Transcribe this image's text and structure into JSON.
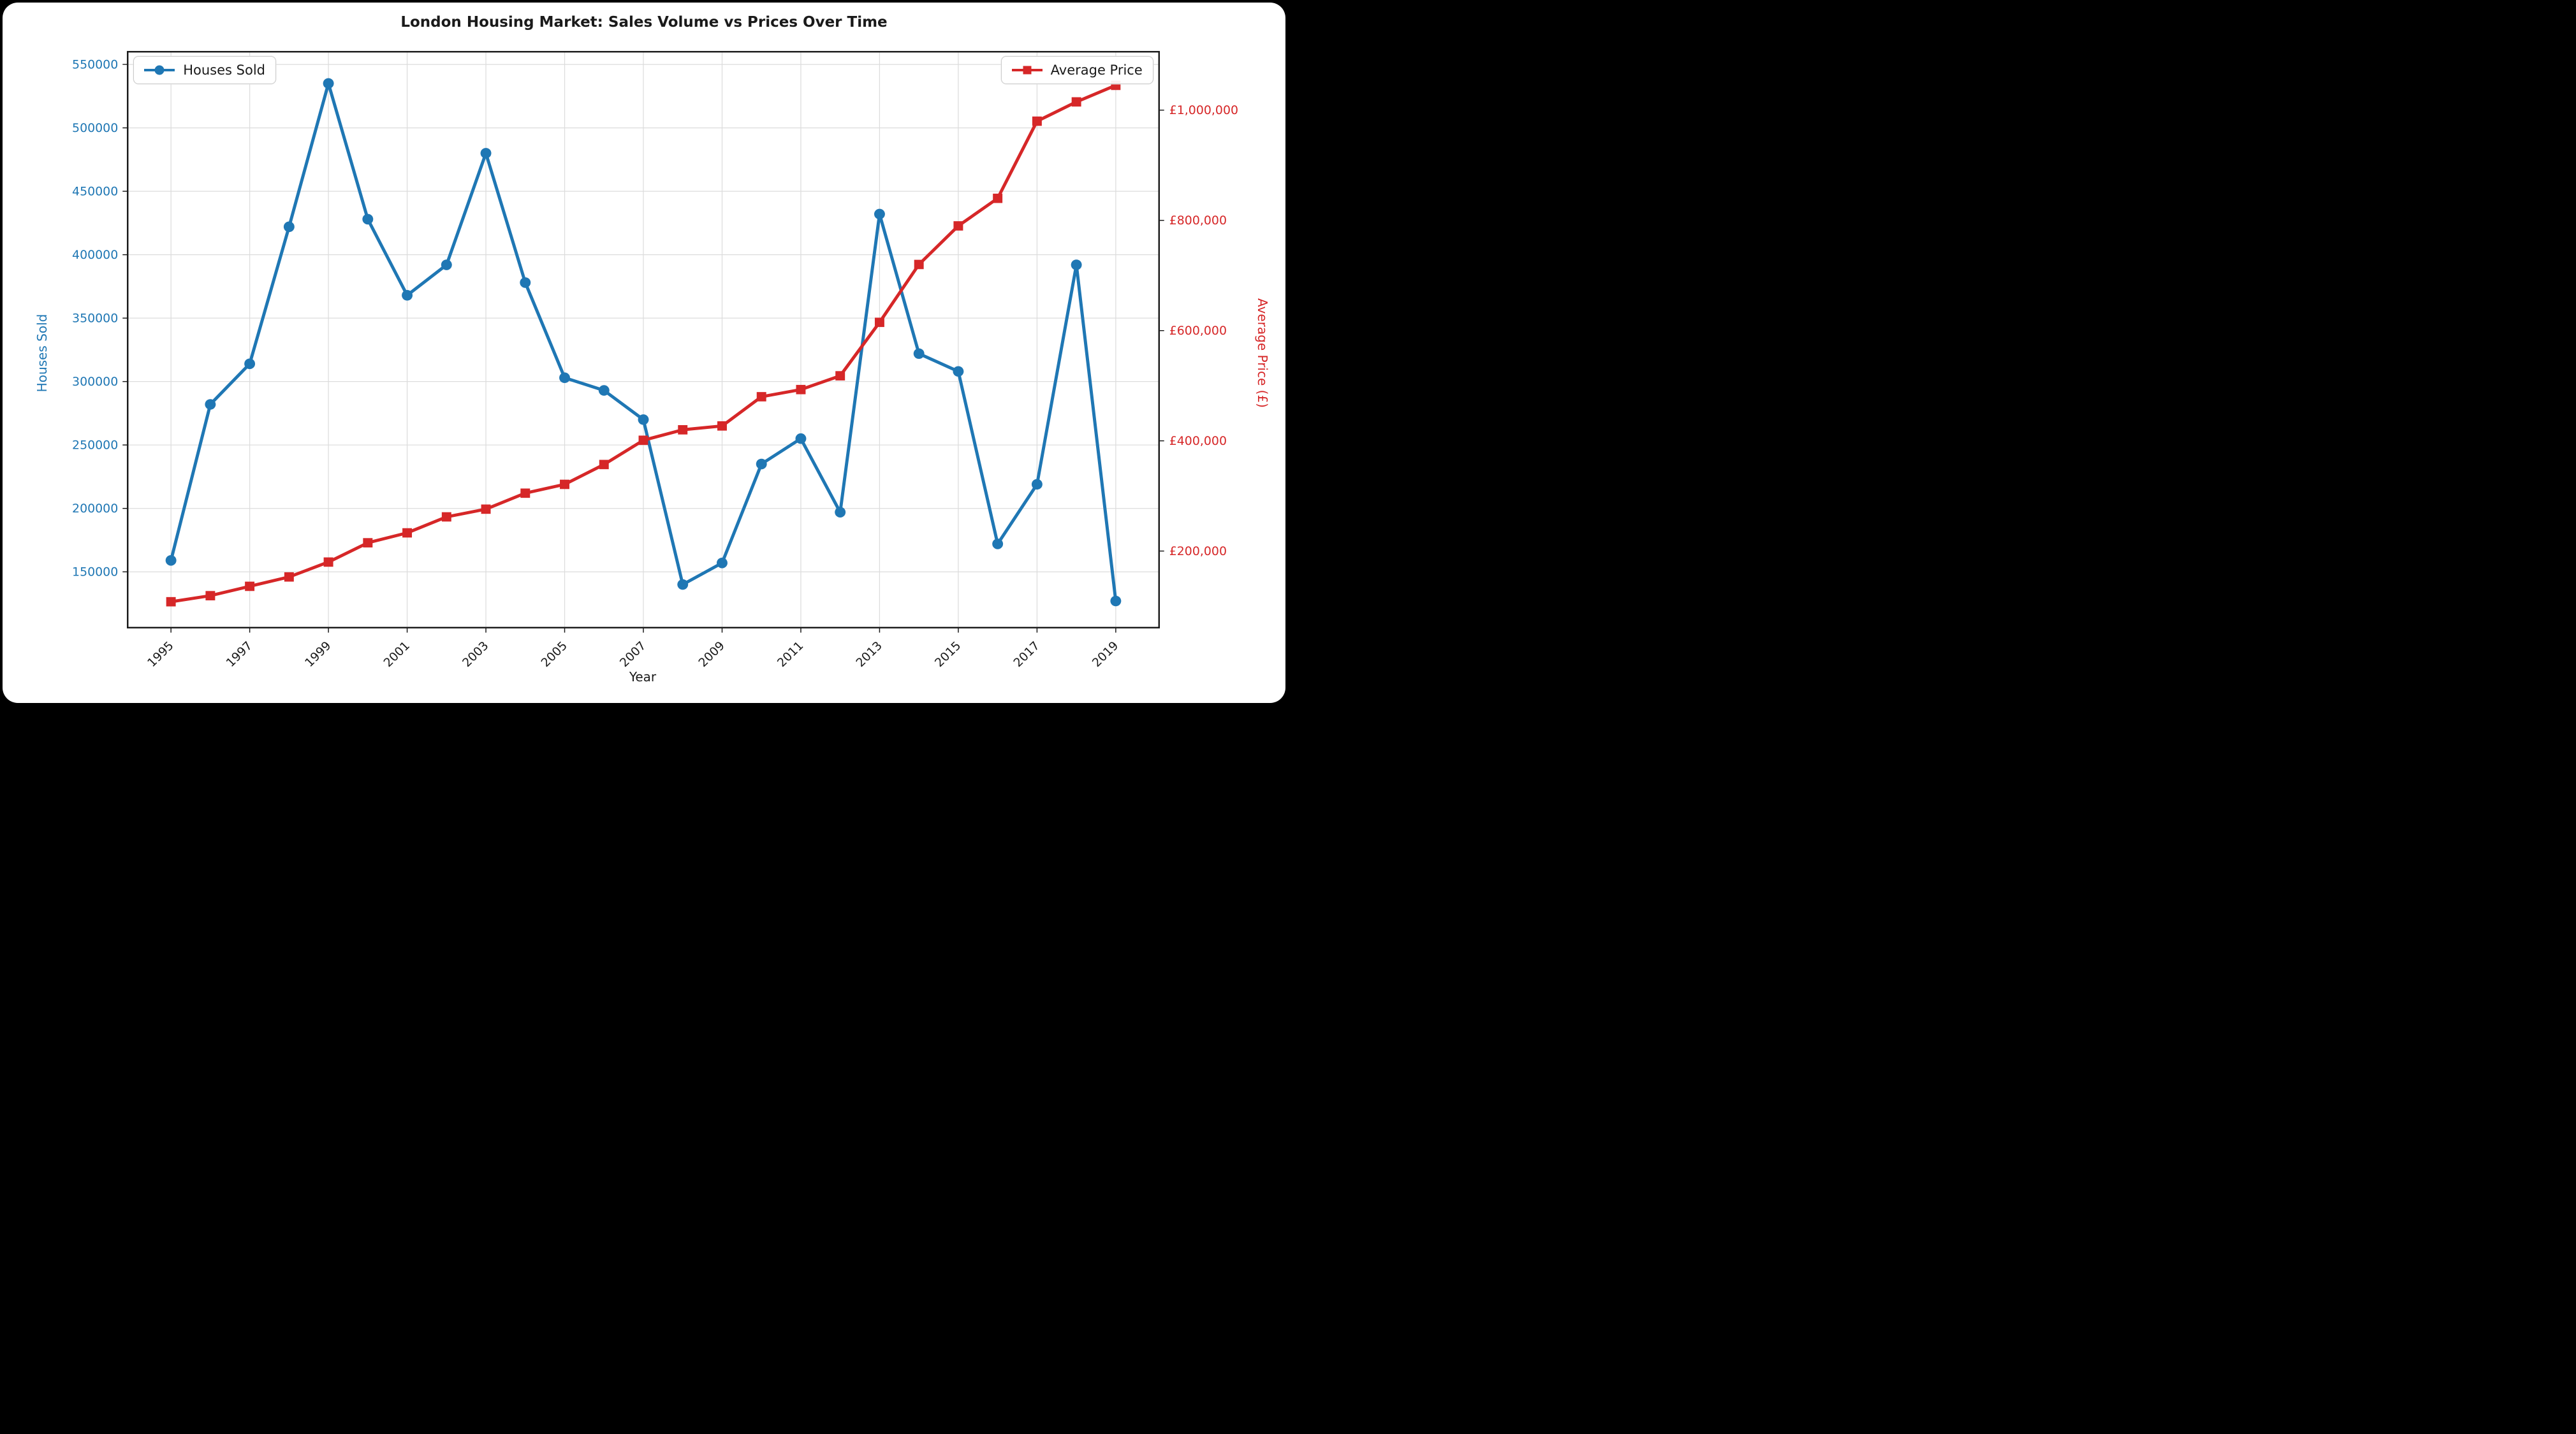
{
  "chart_data": {
    "type": "line",
    "title": "London Housing Market: Sales Volume vs Prices Over Time",
    "xlabel": "Year",
    "grid": true,
    "legend_position": [
      "upper left",
      "upper right"
    ],
    "x": [
      1995,
      1996,
      1997,
      1998,
      1999,
      2000,
      2001,
      2002,
      2003,
      2004,
      2005,
      2006,
      2007,
      2008,
      2009,
      2010,
      2011,
      2012,
      2013,
      2014,
      2015,
      2016,
      2017,
      2018,
      2019
    ],
    "series": [
      {
        "name": "Houses Sold",
        "axis": "left",
        "color": "#1f77b4",
        "marker": "circle",
        "values": [
          159000,
          282000,
          314000,
          422000,
          535000,
          428000,
          368000,
          392000,
          480000,
          378000,
          303000,
          293000,
          270000,
          140000,
          157000,
          235000,
          255000,
          197000,
          432000,
          322000,
          308000,
          172000,
          219000,
          392000,
          127000
        ]
      },
      {
        "name": "Average Price",
        "axis": "right",
        "color": "#d62728",
        "marker": "square",
        "values": [
          108000,
          119000,
          136000,
          153000,
          180000,
          215000,
          233000,
          262000,
          276000,
          305000,
          321000,
          357000,
          401000,
          420000,
          427000,
          480000,
          493000,
          518000,
          615000,
          720000,
          790000,
          840000,
          980000,
          1015000,
          1045000
        ]
      }
    ],
    "x_axis": {
      "min": 1993.9,
      "max": 2020.1,
      "ticks": [
        1995,
        1997,
        1999,
        2001,
        2003,
        2005,
        2007,
        2009,
        2011,
        2013,
        2015,
        2017,
        2019
      ],
      "tick_labels": [
        "1995",
        "1997",
        "1999",
        "2001",
        "2003",
        "2005",
        "2007",
        "2009",
        "2011",
        "2013",
        "2015",
        "2017",
        "2019"
      ],
      "tick_rotation": 45
    },
    "left_axis": {
      "label": "Houses Sold",
      "color": "#1f77b4",
      "min": 106000,
      "max": 560000,
      "ticks": [
        150000,
        200000,
        250000,
        300000,
        350000,
        400000,
        450000,
        500000,
        550000
      ],
      "tick_labels": [
        "150000",
        "200000",
        "250000",
        "300000",
        "350000",
        "400000",
        "450000",
        "500000",
        "550000"
      ]
    },
    "right_axis": {
      "label": "Average Price (£)",
      "color": "#d62728",
      "min": 61000,
      "max": 1106000,
      "ticks": [
        200000,
        400000,
        600000,
        800000,
        1000000
      ],
      "tick_labels": [
        "£200,000",
        "£400,000",
        "£600,000",
        "£800,000",
        "£1,000,000"
      ]
    },
    "style": {
      "grid_color": "#dcdcdc",
      "spine_color": "#1a1a1a",
      "background": "#ffffff",
      "figure_frame": "#000000"
    }
  }
}
